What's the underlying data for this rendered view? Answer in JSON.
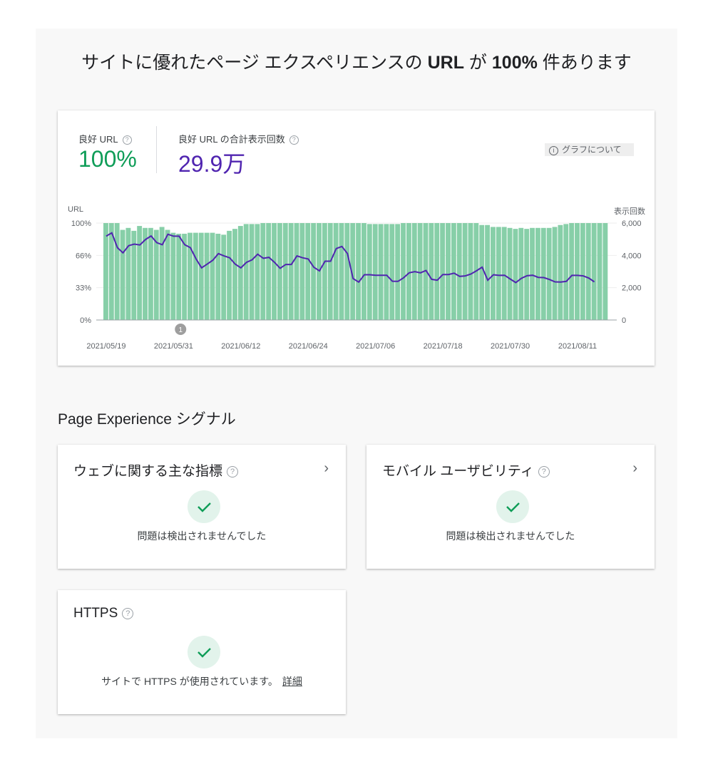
{
  "header": {
    "title_pre": "サイトに優れたページ エクスペリエンスの ",
    "title_url": "URL",
    "title_mid": " が ",
    "title_pct": "100%",
    "title_post": " 件あります"
  },
  "summary": {
    "good_url_label": "良好 URL",
    "good_url_value": "100%",
    "good_url_color": "#0f9d58",
    "impressions_label": "良好 URL の合計表示回数",
    "impressions_value": "29.9万",
    "impressions_color": "#5025b0",
    "about_graph_label": "グラフについて",
    "help_icon": "?",
    "info_icon": "i"
  },
  "chart_data": {
    "type": "bar+line",
    "left_axis_label": "URL",
    "right_axis_label": "表示回数",
    "left_ticks": [
      "0%",
      "33%",
      "66%",
      "100%"
    ],
    "right_ticks": [
      "0",
      "2,000",
      "4,000",
      "6,000"
    ],
    "right_ylim": [
      0,
      6000
    ],
    "left_ylim": [
      0,
      100
    ],
    "x_tick_labels": [
      "2021/05/19",
      "2021/05/31",
      "2021/06/12",
      "2021/06/24",
      "2021/07/06",
      "2021/07/18",
      "2021/07/30",
      "2021/08/11"
    ],
    "annotation": {
      "label": "1",
      "date": "2021/06/01"
    },
    "bar_color": "#87cfa8",
    "line_color": "#5025b0",
    "grid": true,
    "dates": [
      "2021/05/19",
      "2021/05/20",
      "2021/05/21",
      "2021/05/22",
      "2021/05/23",
      "2021/05/24",
      "2021/05/25",
      "2021/05/26",
      "2021/05/27",
      "2021/05/28",
      "2021/05/29",
      "2021/05/30",
      "2021/05/31",
      "2021/06/01",
      "2021/06/02",
      "2021/06/03",
      "2021/06/04",
      "2021/06/05",
      "2021/06/06",
      "2021/06/07",
      "2021/06/08",
      "2021/06/09",
      "2021/06/10",
      "2021/06/11",
      "2021/06/12",
      "2021/06/13",
      "2021/06/14",
      "2021/06/15",
      "2021/06/16",
      "2021/06/17",
      "2021/06/18",
      "2021/06/19",
      "2021/06/20",
      "2021/06/21",
      "2021/06/22",
      "2021/06/23",
      "2021/06/24",
      "2021/06/25",
      "2021/06/26",
      "2021/06/27",
      "2021/06/28",
      "2021/06/29",
      "2021/06/30",
      "2021/07/01",
      "2021/07/02",
      "2021/07/03",
      "2021/07/04",
      "2021/07/05",
      "2021/07/06",
      "2021/07/07",
      "2021/07/08",
      "2021/07/09",
      "2021/07/10",
      "2021/07/11",
      "2021/07/12",
      "2021/07/13",
      "2021/07/14",
      "2021/07/15",
      "2021/07/16",
      "2021/07/17",
      "2021/07/18",
      "2021/07/19",
      "2021/07/20",
      "2021/07/21",
      "2021/07/22",
      "2021/07/23",
      "2021/07/24",
      "2021/07/25",
      "2021/07/26",
      "2021/07/27",
      "2021/07/28",
      "2021/07/29",
      "2021/07/30",
      "2021/07/31",
      "2021/08/01",
      "2021/08/02",
      "2021/08/03",
      "2021/08/04",
      "2021/08/05",
      "2021/08/06",
      "2021/08/07",
      "2021/08/08",
      "2021/08/09",
      "2021/08/10",
      "2021/08/11",
      "2021/08/12",
      "2021/08/13",
      "2021/08/14",
      "2021/08/15",
      "2021/08/16"
    ],
    "good_url_pct": [
      100,
      100,
      100,
      93,
      95,
      92,
      97,
      95,
      95,
      93,
      96,
      93,
      90,
      89,
      89,
      90,
      90,
      90,
      90,
      90,
      89,
      88,
      92,
      94,
      97,
      99,
      99,
      99,
      100,
      100,
      100,
      100,
      100,
      100,
      100,
      100,
      100,
      100,
      100,
      100,
      100,
      100,
      100,
      100,
      100,
      100,
      100,
      99,
      99,
      99,
      99,
      99,
      99,
      100,
      100,
      100,
      100,
      100,
      100,
      100,
      100,
      100,
      100,
      100,
      100,
      100,
      100,
      98,
      98,
      96,
      96,
      96,
      95,
      94,
      95,
      94,
      95,
      95,
      95,
      95,
      96,
      98,
      99,
      100,
      100,
      100,
      100,
      100,
      100,
      100
    ],
    "impressions": [
      5190,
      5395,
      4480,
      4157,
      4600,
      4700,
      4645,
      4980,
      5200,
      4790,
      4660,
      5307,
      5190,
      5190,
      4660,
      4480,
      3790,
      3230,
      3460,
      3700,
      4110,
      3965,
      3850,
      3460,
      3230,
      3570,
      3730,
      4070,
      3820,
      3880,
      3570,
      3200,
      3435,
      3435,
      3965,
      3850,
      3775,
      3270,
      3040,
      3640,
      3640,
      4420,
      4555,
      4110,
      2565,
      2345,
      2800,
      2800,
      2770,
      2770,
      2770,
      2400,
      2390,
      2610,
      2920,
      2990,
      2920,
      3065,
      2520,
      2460,
      2815,
      2815,
      2900,
      2700,
      2730,
      2845,
      3050,
      3270,
      2460,
      2800,
      2760,
      2770,
      2535,
      2315,
      2580,
      2740,
      2770,
      2640,
      2625,
      2505,
      2360,
      2345,
      2390,
      2760,
      2760,
      2730,
      2595,
      2360,
      null,
      null
    ]
  },
  "signals": {
    "section_title": "Page Experience シグナル",
    "cards": [
      {
        "title": "ウェブに関する主な指標",
        "message": "問題は検出されませんでした"
      },
      {
        "title": "モバイル ユーザビリティ",
        "message": "問題は検出されませんでした"
      },
      {
        "title": "HTTPS",
        "message": "サイトで HTTPS が使用されています。",
        "link": "詳細"
      }
    ],
    "chevron": "›",
    "check_color": "#0f9d58"
  }
}
